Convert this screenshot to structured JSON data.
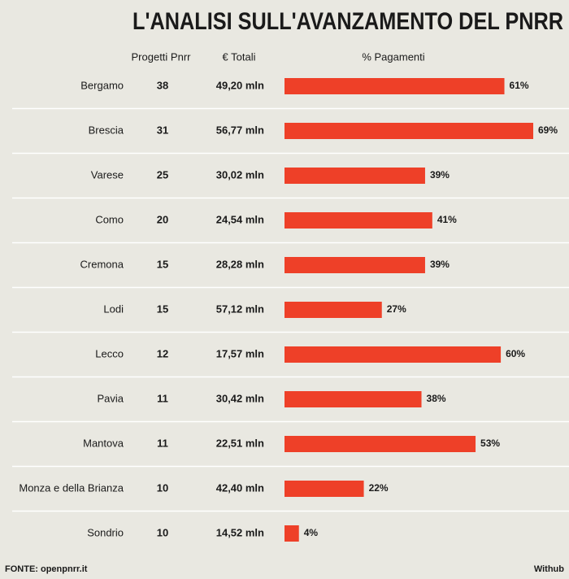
{
  "chart_data": {
    "type": "bar",
    "title": "L'ANALISI SULL'AVANZAMENTO DEL PNRR",
    "column_headers": [
      "Progetti Pnrr",
      "€ Totali",
      "% Pagamenti"
    ],
    "categories": [
      "Bergamo",
      "Brescia",
      "Varese",
      "Como",
      "Cremona",
      "Lodi",
      "Lecco",
      "Pavia",
      "Mantova",
      "Monza e della Brianza",
      "Sondrio"
    ],
    "projects": [
      38,
      31,
      25,
      20,
      15,
      15,
      12,
      11,
      11,
      10,
      10
    ],
    "totals": [
      "49,20 mln",
      "56,77 mln",
      "30,02 mln",
      "24,54 mln",
      "28,28 mln",
      "57,12 mln",
      "17,57 mln",
      "30,42 mln",
      "22,51 mln",
      "42,40 mln",
      "14,52 mln"
    ],
    "values": [
      61,
      69,
      39,
      41,
      39,
      27,
      60,
      38,
      53,
      22,
      4
    ],
    "value_labels": [
      "61%",
      "69%",
      "39%",
      "41%",
      "39%",
      "27%",
      "60%",
      "38%",
      "53%",
      "22%",
      "4%"
    ],
    "color": "#ee4028",
    "source": "FONTE: openpnrr.it",
    "credit": "Withub"
  }
}
